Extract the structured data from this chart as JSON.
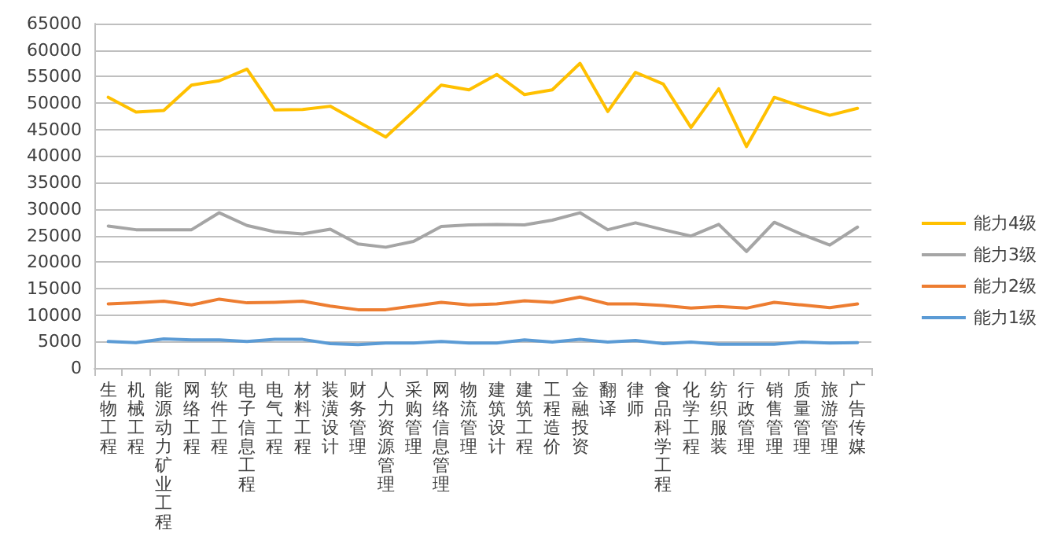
{
  "chart_data": {
    "type": "line",
    "categories": [
      "生物工程",
      "机械工程",
      "能源动力矿业工程",
      "网络工程",
      "软件工程",
      "电子信息工程",
      "电气工程",
      "材料工程",
      "装潢设计",
      "财务管理",
      "人力资源管理",
      "采购管理",
      "网络信息管理",
      "物流管理",
      "建筑设计",
      "建筑工程",
      "工程造价",
      "金融投资",
      "翻译",
      "律师",
      "食品科学工程",
      "化学工程",
      "纺织服装",
      "行政管理",
      "销售管理",
      "质量管理",
      "旅游管理",
      "广告传媒"
    ],
    "series": [
      {
        "name": "能力4级",
        "color": "#ffc000",
        "values": [
          51100,
          48300,
          48600,
          53400,
          54200,
          56400,
          48700,
          48800,
          49400,
          46500,
          43600,
          48400,
          53400,
          52500,
          55400,
          51600,
          52500,
          57500,
          48400,
          55800,
          53600,
          45400,
          52700,
          41800,
          51100,
          49300,
          47700,
          49000
        ]
      },
      {
        "name": "能力3级",
        "color": "#a5a5a5",
        "values": [
          26800,
          26100,
          26100,
          26100,
          29300,
          26900,
          25700,
          25300,
          26200,
          23400,
          22800,
          23900,
          26700,
          27000,
          27100,
          27000,
          27900,
          29300,
          26100,
          27400,
          26100,
          24900,
          27100,
          22000,
          27500,
          25200,
          23200,
          26600
        ]
      },
      {
        "name": "能力2级",
        "color": "#ed7d31",
        "values": [
          12100,
          12300,
          12600,
          11900,
          13000,
          12300,
          12400,
          12600,
          11700,
          11000,
          11000,
          11700,
          12400,
          11900,
          12100,
          12700,
          12400,
          13400,
          12100,
          12100,
          11800,
          11300,
          11600,
          11300,
          12400,
          11900,
          11400,
          12100
        ]
      },
      {
        "name": "能力1级",
        "color": "#5b9bd5",
        "values": [
          5000,
          4800,
          5500,
          5300,
          5300,
          5000,
          5400,
          5400,
          4600,
          4400,
          4700,
          4700,
          5000,
          4700,
          4700,
          5300,
          4900,
          5400,
          4900,
          5200,
          4600,
          4900,
          4500,
          4500,
          4500,
          4900,
          4700,
          4800
        ]
      }
    ],
    "ylim": [
      0,
      65000
    ],
    "yticks": [
      0,
      5000,
      10000,
      15000,
      20000,
      25000,
      30000,
      35000,
      40000,
      45000,
      50000,
      55000,
      60000,
      65000
    ],
    "grid": "y",
    "legend": "right",
    "marker": "none",
    "line_style": "solid"
  }
}
